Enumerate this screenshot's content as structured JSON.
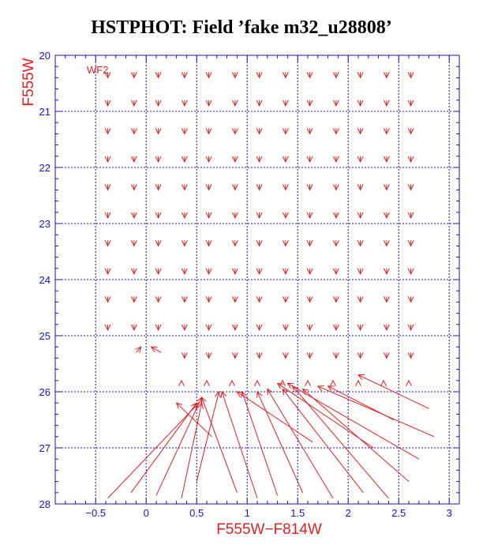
{
  "page_title": "HSTPHOT: Field ’fake m32_u28808’",
  "chart_data": {
    "type": "quiver",
    "title": "HSTPHOT: Field ’fake m32_u28808’",
    "xlabel": "F555W−F814W",
    "ylabel": "F555W",
    "chip_label": "WF2",
    "xlim": [
      -0.9,
      3.1
    ],
    "ylim": [
      28,
      20
    ],
    "x_ticks": [
      -0.5,
      0,
      0.5,
      1,
      1.5,
      2,
      2.5,
      3
    ],
    "x_tick_labels": [
      "−0.5",
      "0",
      "0.5",
      "1",
      "1.5",
      "2",
      "2.5",
      "3"
    ],
    "y_ticks": [
      20,
      21,
      22,
      23,
      24,
      25,
      26,
      27,
      28
    ],
    "y_tick_labels": [
      "20",
      "21",
      "22",
      "23",
      "24",
      "25",
      "26",
      "27",
      "28"
    ],
    "grid": true,
    "colors": {
      "axes": "#1414c8",
      "data": "#e02020",
      "title": "#000000"
    },
    "vectors": [
      {
        "x0": -0.38,
        "y0": 20.3,
        "x1": -0.38,
        "y1": 20.4
      },
      {
        "x0": -0.12,
        "y0": 20.3,
        "x1": -0.12,
        "y1": 20.4
      },
      {
        "x0": 0.12,
        "y0": 20.3,
        "x1": 0.12,
        "y1": 20.4
      },
      {
        "x0": 0.38,
        "y0": 20.3,
        "x1": 0.38,
        "y1": 20.4
      },
      {
        "x0": 0.62,
        "y0": 20.3,
        "x1": 0.62,
        "y1": 20.4
      },
      {
        "x0": 0.88,
        "y0": 20.3,
        "x1": 0.88,
        "y1": 20.4
      },
      {
        "x0": 1.12,
        "y0": 20.3,
        "x1": 1.12,
        "y1": 20.4
      },
      {
        "x0": 1.38,
        "y0": 20.3,
        "x1": 1.38,
        "y1": 20.4
      },
      {
        "x0": 1.62,
        "y0": 20.3,
        "x1": 1.62,
        "y1": 20.4
      },
      {
        "x0": 1.88,
        "y0": 20.3,
        "x1": 1.88,
        "y1": 20.4
      },
      {
        "x0": 2.12,
        "y0": 20.3,
        "x1": 2.12,
        "y1": 20.4
      },
      {
        "x0": 2.38,
        "y0": 20.3,
        "x1": 2.38,
        "y1": 20.4
      },
      {
        "x0": 2.62,
        "y0": 20.3,
        "x1": 2.62,
        "y1": 20.4
      },
      {
        "x0": -0.38,
        "y0": 20.8,
        "x1": -0.38,
        "y1": 20.9
      },
      {
        "x0": -0.12,
        "y0": 20.8,
        "x1": -0.12,
        "y1": 20.9
      },
      {
        "x0": 0.12,
        "y0": 20.8,
        "x1": 0.12,
        "y1": 20.9
      },
      {
        "x0": 0.38,
        "y0": 20.8,
        "x1": 0.38,
        "y1": 20.9
      },
      {
        "x0": 0.62,
        "y0": 20.8,
        "x1": 0.62,
        "y1": 20.9
      },
      {
        "x0": 0.88,
        "y0": 20.8,
        "x1": 0.88,
        "y1": 20.9
      },
      {
        "x0": 1.12,
        "y0": 20.8,
        "x1": 1.12,
        "y1": 20.9
      },
      {
        "x0": 1.38,
        "y0": 20.8,
        "x1": 1.38,
        "y1": 20.9
      },
      {
        "x0": 1.62,
        "y0": 20.8,
        "x1": 1.62,
        "y1": 20.9
      },
      {
        "x0": 1.88,
        "y0": 20.8,
        "x1": 1.88,
        "y1": 20.9
      },
      {
        "x0": 2.12,
        "y0": 20.8,
        "x1": 2.12,
        "y1": 20.9
      },
      {
        "x0": 2.38,
        "y0": 20.8,
        "x1": 2.38,
        "y1": 20.9
      },
      {
        "x0": 2.62,
        "y0": 20.8,
        "x1": 2.62,
        "y1": 20.9
      },
      {
        "x0": -0.38,
        "y0": 21.3,
        "x1": -0.38,
        "y1": 21.4
      },
      {
        "x0": -0.12,
        "y0": 21.3,
        "x1": -0.12,
        "y1": 21.4
      },
      {
        "x0": 0.12,
        "y0": 21.3,
        "x1": 0.12,
        "y1": 21.4
      },
      {
        "x0": 0.38,
        "y0": 21.3,
        "x1": 0.38,
        "y1": 21.4
      },
      {
        "x0": 0.62,
        "y0": 21.3,
        "x1": 0.62,
        "y1": 21.4
      },
      {
        "x0": 0.88,
        "y0": 21.3,
        "x1": 0.88,
        "y1": 21.4
      },
      {
        "x0": 1.12,
        "y0": 21.3,
        "x1": 1.12,
        "y1": 21.4
      },
      {
        "x0": 1.38,
        "y0": 21.3,
        "x1": 1.38,
        "y1": 21.4
      },
      {
        "x0": 1.62,
        "y0": 21.3,
        "x1": 1.62,
        "y1": 21.4
      },
      {
        "x0": 1.88,
        "y0": 21.3,
        "x1": 1.88,
        "y1": 21.4
      },
      {
        "x0": 2.12,
        "y0": 21.3,
        "x1": 2.12,
        "y1": 21.4
      },
      {
        "x0": 2.38,
        "y0": 21.3,
        "x1": 2.38,
        "y1": 21.4
      },
      {
        "x0": 2.62,
        "y0": 21.3,
        "x1": 2.62,
        "y1": 21.4
      },
      {
        "x0": -0.38,
        "y0": 21.8,
        "x1": -0.38,
        "y1": 21.9
      },
      {
        "x0": -0.12,
        "y0": 21.8,
        "x1": -0.12,
        "y1": 21.9
      },
      {
        "x0": 0.12,
        "y0": 21.8,
        "x1": 0.12,
        "y1": 21.9
      },
      {
        "x0": 0.38,
        "y0": 21.8,
        "x1": 0.38,
        "y1": 21.9
      },
      {
        "x0": 0.62,
        "y0": 21.8,
        "x1": 0.62,
        "y1": 21.9
      },
      {
        "x0": 0.88,
        "y0": 21.8,
        "x1": 0.88,
        "y1": 21.9
      },
      {
        "x0": 1.12,
        "y0": 21.8,
        "x1": 1.12,
        "y1": 21.9
      },
      {
        "x0": 1.38,
        "y0": 21.8,
        "x1": 1.38,
        "y1": 21.9
      },
      {
        "x0": 1.62,
        "y0": 21.8,
        "x1": 1.62,
        "y1": 21.9
      },
      {
        "x0": 1.88,
        "y0": 21.8,
        "x1": 1.88,
        "y1": 21.9
      },
      {
        "x0": 2.12,
        "y0": 21.8,
        "x1": 2.12,
        "y1": 21.9
      },
      {
        "x0": 2.38,
        "y0": 21.8,
        "x1": 2.38,
        "y1": 21.9
      },
      {
        "x0": 2.62,
        "y0": 21.8,
        "x1": 2.62,
        "y1": 21.9
      },
      {
        "x0": -0.38,
        "y0": 22.3,
        "x1": -0.38,
        "y1": 22.4
      },
      {
        "x0": -0.12,
        "y0": 22.3,
        "x1": -0.12,
        "y1": 22.4
      },
      {
        "x0": 0.12,
        "y0": 22.3,
        "x1": 0.12,
        "y1": 22.4
      },
      {
        "x0": 0.38,
        "y0": 22.3,
        "x1": 0.38,
        "y1": 22.4
      },
      {
        "x0": 0.62,
        "y0": 22.3,
        "x1": 0.62,
        "y1": 22.4
      },
      {
        "x0": 0.88,
        "y0": 22.3,
        "x1": 0.88,
        "y1": 22.4
      },
      {
        "x0": 1.12,
        "y0": 22.3,
        "x1": 1.12,
        "y1": 22.4
      },
      {
        "x0": 1.38,
        "y0": 22.3,
        "x1": 1.38,
        "y1": 22.4
      },
      {
        "x0": 1.62,
        "y0": 22.3,
        "x1": 1.62,
        "y1": 22.4
      },
      {
        "x0": 1.88,
        "y0": 22.3,
        "x1": 1.88,
        "y1": 22.4
      },
      {
        "x0": 2.12,
        "y0": 22.3,
        "x1": 2.12,
        "y1": 22.4
      },
      {
        "x0": 2.38,
        "y0": 22.3,
        "x1": 2.38,
        "y1": 22.4
      },
      {
        "x0": 2.62,
        "y0": 22.3,
        "x1": 2.62,
        "y1": 22.4
      },
      {
        "x0": -0.38,
        "y0": 22.8,
        "x1": -0.38,
        "y1": 22.9
      },
      {
        "x0": -0.12,
        "y0": 22.8,
        "x1": -0.12,
        "y1": 22.9
      },
      {
        "x0": 0.12,
        "y0": 22.8,
        "x1": 0.12,
        "y1": 22.9
      },
      {
        "x0": 0.38,
        "y0": 22.8,
        "x1": 0.38,
        "y1": 22.9
      },
      {
        "x0": 0.62,
        "y0": 22.8,
        "x1": 0.62,
        "y1": 22.9
      },
      {
        "x0": 0.88,
        "y0": 22.8,
        "x1": 0.88,
        "y1": 22.9
      },
      {
        "x0": 1.12,
        "y0": 22.8,
        "x1": 1.12,
        "y1": 22.9
      },
      {
        "x0": 1.38,
        "y0": 22.8,
        "x1": 1.38,
        "y1": 22.9
      },
      {
        "x0": 1.62,
        "y0": 22.8,
        "x1": 1.62,
        "y1": 22.9
      },
      {
        "x0": 1.88,
        "y0": 22.8,
        "x1": 1.88,
        "y1": 22.9
      },
      {
        "x0": 2.12,
        "y0": 22.8,
        "x1": 2.12,
        "y1": 22.9
      },
      {
        "x0": 2.38,
        "y0": 22.8,
        "x1": 2.38,
        "y1": 22.9
      },
      {
        "x0": 2.62,
        "y0": 22.8,
        "x1": 2.62,
        "y1": 22.9
      },
      {
        "x0": -0.38,
        "y0": 23.3,
        "x1": -0.38,
        "y1": 23.4
      },
      {
        "x0": -0.12,
        "y0": 23.3,
        "x1": -0.12,
        "y1": 23.4
      },
      {
        "x0": 0.12,
        "y0": 23.3,
        "x1": 0.12,
        "y1": 23.4
      },
      {
        "x0": 0.38,
        "y0": 23.3,
        "x1": 0.38,
        "y1": 23.4
      },
      {
        "x0": 0.62,
        "y0": 23.3,
        "x1": 0.62,
        "y1": 23.4
      },
      {
        "x0": 0.88,
        "y0": 23.3,
        "x1": 0.88,
        "y1": 23.4
      },
      {
        "x0": 1.12,
        "y0": 23.3,
        "x1": 1.12,
        "y1": 23.4
      },
      {
        "x0": 1.38,
        "y0": 23.3,
        "x1": 1.38,
        "y1": 23.4
      },
      {
        "x0": 1.62,
        "y0": 23.3,
        "x1": 1.62,
        "y1": 23.4
      },
      {
        "x0": 1.88,
        "y0": 23.3,
        "x1": 1.88,
        "y1": 23.4
      },
      {
        "x0": 2.12,
        "y0": 23.3,
        "x1": 2.12,
        "y1": 23.4
      },
      {
        "x0": 2.38,
        "y0": 23.3,
        "x1": 2.38,
        "y1": 23.4
      },
      {
        "x0": 2.62,
        "y0": 23.3,
        "x1": 2.62,
        "y1": 23.4
      },
      {
        "x0": -0.38,
        "y0": 23.8,
        "x1": -0.38,
        "y1": 23.9
      },
      {
        "x0": -0.12,
        "y0": 23.8,
        "x1": -0.12,
        "y1": 23.9
      },
      {
        "x0": 0.12,
        "y0": 23.8,
        "x1": 0.12,
        "y1": 23.9
      },
      {
        "x0": 0.38,
        "y0": 23.8,
        "x1": 0.38,
        "y1": 23.9
      },
      {
        "x0": 0.62,
        "y0": 23.8,
        "x1": 0.62,
        "y1": 23.9
      },
      {
        "x0": 0.88,
        "y0": 23.8,
        "x1": 0.88,
        "y1": 23.9
      },
      {
        "x0": 1.12,
        "y0": 23.8,
        "x1": 1.12,
        "y1": 23.9
      },
      {
        "x0": 1.38,
        "y0": 23.8,
        "x1": 1.38,
        "y1": 23.9
      },
      {
        "x0": 1.62,
        "y0": 23.8,
        "x1": 1.62,
        "y1": 23.9
      },
      {
        "x0": 1.88,
        "y0": 23.8,
        "x1": 1.88,
        "y1": 23.9
      },
      {
        "x0": 2.12,
        "y0": 23.8,
        "x1": 2.12,
        "y1": 23.9
      },
      {
        "x0": 2.38,
        "y0": 23.8,
        "x1": 2.38,
        "y1": 23.9
      },
      {
        "x0": 2.62,
        "y0": 23.8,
        "x1": 2.62,
        "y1": 23.9
      },
      {
        "x0": -0.38,
        "y0": 24.3,
        "x1": -0.38,
        "y1": 24.4
      },
      {
        "x0": -0.12,
        "y0": 24.3,
        "x1": -0.12,
        "y1": 24.4
      },
      {
        "x0": 0.12,
        "y0": 24.3,
        "x1": 0.12,
        "y1": 24.4
      },
      {
        "x0": 0.38,
        "y0": 24.3,
        "x1": 0.38,
        "y1": 24.4
      },
      {
        "x0": 0.62,
        "y0": 24.3,
        "x1": 0.62,
        "y1": 24.4
      },
      {
        "x0": 0.88,
        "y0": 24.3,
        "x1": 0.88,
        "y1": 24.4
      },
      {
        "x0": 1.12,
        "y0": 24.3,
        "x1": 1.12,
        "y1": 24.4
      },
      {
        "x0": 1.38,
        "y0": 24.3,
        "x1": 1.38,
        "y1": 24.4
      },
      {
        "x0": 1.62,
        "y0": 24.3,
        "x1": 1.62,
        "y1": 24.4
      },
      {
        "x0": 1.88,
        "y0": 24.3,
        "x1": 1.88,
        "y1": 24.4
      },
      {
        "x0": 2.12,
        "y0": 24.3,
        "x1": 2.12,
        "y1": 24.4
      },
      {
        "x0": 2.38,
        "y0": 24.3,
        "x1": 2.38,
        "y1": 24.4
      },
      {
        "x0": 2.62,
        "y0": 24.3,
        "x1": 2.62,
        "y1": 24.4
      },
      {
        "x0": -0.38,
        "y0": 24.8,
        "x1": -0.38,
        "y1": 24.9
      },
      {
        "x0": -0.12,
        "y0": 24.8,
        "x1": -0.12,
        "y1": 24.9
      },
      {
        "x0": 0.12,
        "y0": 24.8,
        "x1": 0.12,
        "y1": 24.9
      },
      {
        "x0": 0.38,
        "y0": 24.8,
        "x1": 0.38,
        "y1": 24.9
      },
      {
        "x0": 0.62,
        "y0": 24.8,
        "x1": 0.62,
        "y1": 24.9
      },
      {
        "x0": 0.88,
        "y0": 24.8,
        "x1": 0.88,
        "y1": 24.9
      },
      {
        "x0": 1.12,
        "y0": 24.8,
        "x1": 1.12,
        "y1": 24.9
      },
      {
        "x0": 1.38,
        "y0": 24.8,
        "x1": 1.38,
        "y1": 24.9
      },
      {
        "x0": 1.62,
        "y0": 24.8,
        "x1": 1.62,
        "y1": 24.9
      },
      {
        "x0": 1.88,
        "y0": 24.8,
        "x1": 1.88,
        "y1": 24.9
      },
      {
        "x0": 2.12,
        "y0": 24.8,
        "x1": 2.12,
        "y1": 24.9
      },
      {
        "x0": 2.38,
        "y0": 24.8,
        "x1": 2.38,
        "y1": 24.9
      },
      {
        "x0": 2.62,
        "y0": 24.8,
        "x1": 2.62,
        "y1": 24.9
      },
      {
        "x0": -0.1,
        "y0": 25.3,
        "x1": -0.05,
        "y1": 25.2
      },
      {
        "x0": 0.15,
        "y0": 25.3,
        "x1": 0.05,
        "y1": 25.2
      },
      {
        "x0": 0.38,
        "y0": 25.3,
        "x1": 0.38,
        "y1": 25.4
      },
      {
        "x0": 0.62,
        "y0": 25.3,
        "x1": 0.62,
        "y1": 25.4
      },
      {
        "x0": 0.88,
        "y0": 25.3,
        "x1": 0.88,
        "y1": 25.4
      },
      {
        "x0": 1.12,
        "y0": 25.3,
        "x1": 1.12,
        "y1": 25.4
      },
      {
        "x0": 1.38,
        "y0": 25.3,
        "x1": 1.38,
        "y1": 25.4
      },
      {
        "x0": 1.62,
        "y0": 25.3,
        "x1": 1.62,
        "y1": 25.4
      },
      {
        "x0": 1.88,
        "y0": 25.3,
        "x1": 1.88,
        "y1": 25.4
      },
      {
        "x0": 2.12,
        "y0": 25.3,
        "x1": 2.12,
        "y1": 25.4
      },
      {
        "x0": 2.38,
        "y0": 25.3,
        "x1": 2.38,
        "y1": 25.4
      },
      {
        "x0": 2.62,
        "y0": 25.3,
        "x1": 2.62,
        "y1": 25.4
      },
      {
        "x0": 0.35,
        "y0": 25.8,
        "x1": 0.35,
        "y1": 25.8
      },
      {
        "x0": 0.6,
        "y0": 25.8,
        "x1": 0.6,
        "y1": 25.8
      },
      {
        "x0": 0.85,
        "y0": 25.8,
        "x1": 0.85,
        "y1": 25.8
      },
      {
        "x0": 1.1,
        "y0": 25.8,
        "x1": 1.1,
        "y1": 25.8
      },
      {
        "x0": 1.35,
        "y0": 25.8,
        "x1": 1.35,
        "y1": 25.8
      },
      {
        "x0": 1.6,
        "y0": 25.8,
        "x1": 1.6,
        "y1": 25.8
      },
      {
        "x0": 1.85,
        "y0": 25.8,
        "x1": 1.85,
        "y1": 25.8
      },
      {
        "x0": 2.1,
        "y0": 25.8,
        "x1": 2.1,
        "y1": 25.8
      },
      {
        "x0": 2.35,
        "y0": 25.8,
        "x1": 2.35,
        "y1": 25.8
      },
      {
        "x0": 2.6,
        "y0": 25.8,
        "x1": 2.6,
        "y1": 25.8
      },
      {
        "x0": -0.38,
        "y0": 27.9,
        "x1": 0.52,
        "y1": 26.2
      },
      {
        "x0": -0.15,
        "y0": 27.8,
        "x1": 0.5,
        "y1": 26.2
      },
      {
        "x0": 0.1,
        "y0": 27.85,
        "x1": 0.55,
        "y1": 26.1
      },
      {
        "x0": 0.35,
        "y0": 27.9,
        "x1": 0.55,
        "y1": 26.2
      },
      {
        "x0": 0.65,
        "y0": 26.8,
        "x1": 0.3,
        "y1": 26.2
      },
      {
        "x0": 0.9,
        "y0": 27.8,
        "x1": 0.55,
        "y1": 26.1
      },
      {
        "x0": 1.1,
        "y0": 27.9,
        "x1": 0.75,
        "y1": 26.0
      },
      {
        "x0": 1.3,
        "y0": 27.85,
        "x1": 0.95,
        "y1": 26.0
      },
      {
        "x0": 1.55,
        "y0": 27.8,
        "x1": 1.1,
        "y1": 26.0
      },
      {
        "x0": 1.85,
        "y0": 27.9,
        "x1": 1.2,
        "y1": 25.95
      },
      {
        "x0": 2.15,
        "y0": 27.8,
        "x1": 1.35,
        "y1": 25.95
      },
      {
        "x0": 2.4,
        "y0": 27.9,
        "x1": 1.45,
        "y1": 25.9
      },
      {
        "x0": 2.6,
        "y0": 27.6,
        "x1": 1.55,
        "y1": 25.95
      },
      {
        "x0": 2.85,
        "y0": 26.8,
        "x1": 1.7,
        "y1": 25.9
      },
      {
        "x0": 2.8,
        "y0": 26.3,
        "x1": 2.1,
        "y1": 25.7
      },
      {
        "x0": 2.7,
        "y0": 27.2,
        "x1": 1.4,
        "y1": 25.85
      },
      {
        "x0": 2.25,
        "y0": 27.0,
        "x1": 1.3,
        "y1": 25.85
      },
      {
        "x0": 1.65,
        "y0": 26.9,
        "x1": 0.9,
        "y1": 26.0
      },
      {
        "x0": 0.5,
        "y0": 27.6,
        "x1": 0.72,
        "y1": 26.0
      },
      {
        "x0": 2.45,
        "y0": 26.5,
        "x1": 1.8,
        "y1": 25.9
      }
    ]
  }
}
